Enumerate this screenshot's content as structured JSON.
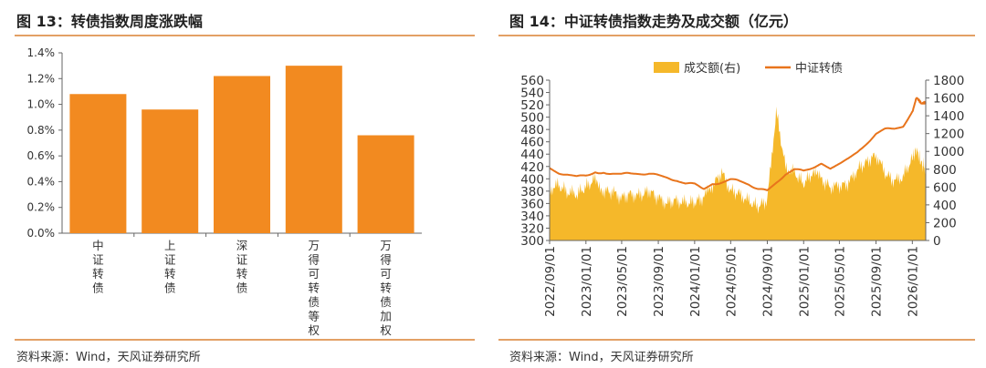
{
  "left_panel": {
    "title": "图 13：转债指数周度涨跌幅",
    "source": "资料来源：Wind，天风证券研究所"
  },
  "right_panel": {
    "title": "图 14：中证转债指数走势及成交额（亿元）",
    "source": "资料来源：Wind，天风证券研究所"
  },
  "colors": {
    "bar": "#f28a20",
    "area": "#f5b82a",
    "line": "#e8741c",
    "rule": "#e3a065"
  },
  "chart_data": [
    {
      "type": "bar",
      "categories": [
        "中证转债",
        "上证转债",
        "深证转债",
        "万得可转债等权",
        "万得可转债加权"
      ],
      "values": [
        1.08,
        0.96,
        1.22,
        1.3,
        0.76
      ],
      "ylim": [
        0,
        1.4
      ],
      "yticks": [
        "0.0%",
        "0.2%",
        "0.4%",
        "0.6%",
        "0.8%",
        "1.0%",
        "1.2%",
        "1.4%"
      ],
      "grid": false
    },
    {
      "type": "line",
      "legend": [
        "成交额(右)",
        "中证转债"
      ],
      "legend_position": "top-center",
      "x_tick_labels": [
        "2022/09/01",
        "2023/01/01",
        "2023/05/01",
        "2023/09/01",
        "2024/01/01",
        "2024/05/01",
        "2024/09/01",
        "2025/01/01",
        "2025/05/01",
        "2025/09/01",
        "2026/01/01"
      ],
      "x_range": [
        "2022/09/01",
        "2026/02/15"
      ],
      "y_left_ticks": [
        "300",
        "320",
        "340",
        "360",
        "380",
        "400",
        "420",
        "440",
        "460",
        "480",
        "500",
        "520",
        "540",
        "560"
      ],
      "y_left_range": [
        300,
        560
      ],
      "y_right_ticks": [
        "0",
        "200",
        "400",
        "600",
        "800",
        "1000",
        "1200",
        "1400",
        "1600",
        "1800"
      ],
      "y_right_range": [
        0,
        1800
      ],
      "grid": false,
      "series": [
        {
          "name": "中证转债",
          "axis": "left",
          "type": "line",
          "points": [
            [
              "2022/09/01",
              418
            ],
            [
              "2022/10/01",
              410
            ],
            [
              "2022/11/01",
              406
            ],
            [
              "2022/12/01",
              403
            ],
            [
              "2023/01/01",
              406
            ],
            [
              "2023/02/01",
              411
            ],
            [
              "2023/03/01",
              410
            ],
            [
              "2023/04/01",
              409
            ],
            [
              "2023/05/01",
              408
            ],
            [
              "2023/06/01",
              408
            ],
            [
              "2023/07/01",
              408
            ],
            [
              "2023/08/01",
              409
            ],
            [
              "2023/09/01",
              405
            ],
            [
              "2023/10/01",
              401
            ],
            [
              "2023/11/01",
              398
            ],
            [
              "2023/12/01",
              393
            ],
            [
              "2024/01/01",
              391
            ],
            [
              "2024/02/01",
              385
            ],
            [
              "2024/03/01",
              392
            ],
            [
              "2024/04/01",
              394
            ],
            [
              "2024/05/01",
              399
            ],
            [
              "2024/06/01",
              396
            ],
            [
              "2024/07/01",
              391
            ],
            [
              "2024/08/01",
              384
            ],
            [
              "2024/09/01",
              380
            ],
            [
              "2024/10/01",
              393
            ],
            [
              "2024/11/01",
              408
            ],
            [
              "2024/12/01",
              416
            ],
            [
              "2025/01/01",
              412
            ],
            [
              "2025/02/01",
              419
            ],
            [
              "2025/03/01",
              423
            ],
            [
              "2025/04/01",
              418
            ],
            [
              "2025/05/01",
              426
            ],
            [
              "2025/06/01",
              432
            ],
            [
              "2025/07/01",
              442
            ],
            [
              "2025/08/01",
              458
            ],
            [
              "2025/09/01",
              472
            ],
            [
              "2025/10/01",
              480
            ],
            [
              "2025/11/01",
              482
            ],
            [
              "2025/12/01",
              486
            ],
            [
              "2026/01/01",
              508
            ],
            [
              "2026/01/15",
              532
            ],
            [
              "2026/02/01",
              522
            ],
            [
              "2026/02/15",
              524
            ]
          ]
        },
        {
          "name": "成交额(右)",
          "axis": "right",
          "type": "area",
          "points": [
            [
              "2022/09/01",
              580
            ],
            [
              "2022/10/01",
              620
            ],
            [
              "2022/11/01",
              540
            ],
            [
              "2022/12/01",
              520
            ],
            [
              "2023/01/01",
              600
            ],
            [
              "2023/02/01",
              690
            ],
            [
              "2023/03/01",
              560
            ],
            [
              "2023/04/01",
              540
            ],
            [
              "2023/05/01",
              480
            ],
            [
              "2023/06/01",
              520
            ],
            [
              "2023/07/01",
              500
            ],
            [
              "2023/08/01",
              560
            ],
            [
              "2023/09/01",
              470
            ],
            [
              "2023/10/01",
              420
            ],
            [
              "2023/11/01",
              450
            ],
            [
              "2023/12/01",
              420
            ],
            [
              "2024/01/01",
              430
            ],
            [
              "2024/02/01",
              480
            ],
            [
              "2024/03/01",
              620
            ],
            [
              "2024/04/01",
              760
            ],
            [
              "2024/05/01",
              560
            ],
            [
              "2024/06/01",
              520
            ],
            [
              "2024/07/01",
              440
            ],
            [
              "2024/08/01",
              380
            ],
            [
              "2024/09/01",
              450
            ],
            [
              "2024/10/01",
              1450
            ],
            [
              "2024/11/01",
              820
            ],
            [
              "2024/12/01",
              760
            ],
            [
              "2025/01/01",
              640
            ],
            [
              "2025/02/01",
              760
            ],
            [
              "2025/03/01",
              680
            ],
            [
              "2025/04/01",
              600
            ],
            [
              "2025/05/01",
              610
            ],
            [
              "2025/06/01",
              640
            ],
            [
              "2025/07/01",
              800
            ],
            [
              "2025/08/01",
              880
            ],
            [
              "2025/09/01",
              960
            ],
            [
              "2025/10/01",
              760
            ],
            [
              "2025/11/01",
              660
            ],
            [
              "2025/12/01",
              720
            ],
            [
              "2026/01/01",
              920
            ],
            [
              "2026/01/15",
              1020
            ],
            [
              "2026/02/01",
              860
            ],
            [
              "2026/02/15",
              820
            ]
          ]
        }
      ]
    }
  ]
}
